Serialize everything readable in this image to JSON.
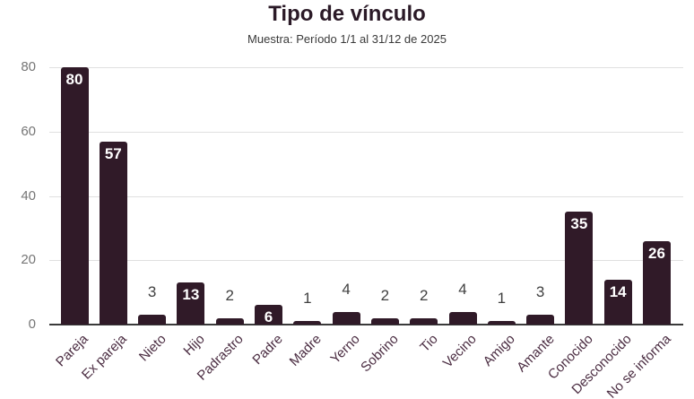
{
  "chart_data": {
    "type": "bar",
    "title": "Tipo de vínculo",
    "subtitle": "Muestra: Período 1/1 al 31/12 de 2025",
    "categories": [
      "Pareja",
      "Ex pareja",
      "Nieto",
      "Hijo",
      "Padrastro",
      "Padre",
      "Madre",
      "Yerno",
      "Sobrino",
      "Tio",
      "Vecino",
      "Amigo",
      "Amante",
      "Conocido",
      "Desconocido",
      "No se informa"
    ],
    "values": [
      80,
      57,
      3,
      13,
      2,
      6,
      1,
      4,
      2,
      2,
      4,
      1,
      3,
      35,
      14,
      26
    ],
    "ylim": [
      0,
      80
    ],
    "yticks": [
      0,
      20,
      40,
      60,
      80
    ],
    "grid": true,
    "legend": "none",
    "bar_orientation": "vertical",
    "value_label_inside_min": 6,
    "colors": {
      "bar": "#301a28",
      "title": "#2b1a27",
      "subtitle": "#3a3a3a",
      "ytick_label": "#757575",
      "xtick_label": "#4b2d42",
      "gridline": "#e0e0e0",
      "baseline": "#3a3a3a",
      "value_label_inside": "#ffffff",
      "value_label_outside": "#404040"
    }
  }
}
